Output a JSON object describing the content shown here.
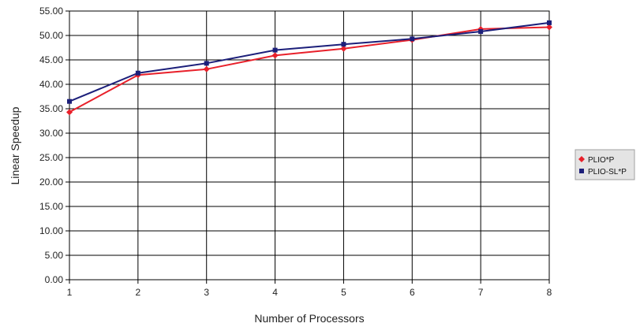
{
  "chart_data": {
    "type": "line",
    "title": "",
    "xlabel": "Number of Processors",
    "ylabel": "Linear Speedup",
    "x": [
      1,
      2,
      3,
      4,
      5,
      6,
      7,
      8
    ],
    "x_ticks": [
      "1",
      "2",
      "3",
      "4",
      "5",
      "6",
      "7",
      "8"
    ],
    "ylim": [
      0,
      55
    ],
    "y_ticks": [
      "0.00",
      "5.00",
      "10.00",
      "15.00",
      "20.00",
      "25.00",
      "30.00",
      "35.00",
      "40.00",
      "45.00",
      "50.00",
      "55.00"
    ],
    "grid": true,
    "legend_position": "right",
    "series": [
      {
        "name": "PLIO*P",
        "color": "#e8202a",
        "marker": "diamond",
        "values": [
          34.3,
          41.9,
          43.1,
          45.9,
          47.3,
          49.1,
          51.3,
          51.7
        ]
      },
      {
        "name": "PLIO-SL*P",
        "color": "#1c1f7a",
        "marker": "square",
        "values": [
          36.5,
          42.3,
          44.3,
          47.0,
          48.2,
          49.3,
          50.8,
          52.6
        ]
      }
    ]
  }
}
